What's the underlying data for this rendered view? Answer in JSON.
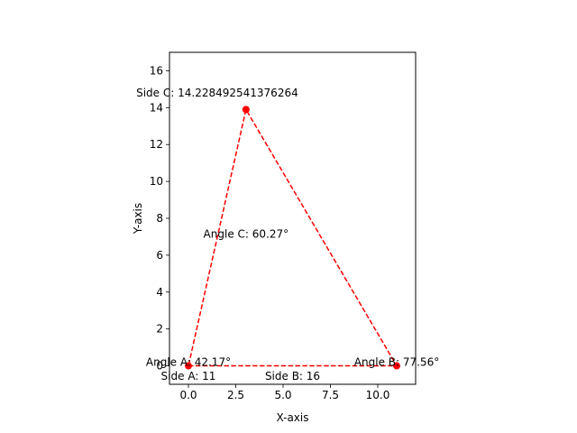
{
  "chart_data": {
    "type": "line",
    "title": "",
    "xlabel": "X-axis",
    "ylabel": "Y-axis",
    "xlim": [
      -1,
      12
    ],
    "ylim": [
      -1,
      17
    ],
    "xticks": [
      0,
      2.5,
      5,
      7.5,
      10
    ],
    "xtick_labels": [
      "0.0",
      "2.5",
      "5.0",
      "7.5",
      "10.0"
    ],
    "yticks": [
      0,
      2,
      4,
      6,
      8,
      10,
      12,
      14,
      16
    ],
    "ytick_labels": [
      "0",
      "2",
      "4",
      "6",
      "8",
      "10",
      "12",
      "14",
      "16"
    ],
    "grid": false,
    "series": [
      {
        "color": "#ff0000",
        "linestyle": "dashed",
        "marker": "circle",
        "points": [
          {
            "x": 0,
            "y": 0
          },
          {
            "x": 11,
            "y": 0
          },
          {
            "x": 3.04,
            "y": 13.9
          },
          {
            "x": 0,
            "y": 0
          }
        ]
      }
    ],
    "annotations": [
      {
        "text": "Angle A: 42.17°",
        "x": 0,
        "y": 0
      },
      {
        "text": "Angle B: 77.56°",
        "x": 11,
        "y": 0
      },
      {
        "text": "Angle C: 60.27°",
        "x": 3.04,
        "y": 6.95
      },
      {
        "text": "Side A: 11",
        "x": 0,
        "y": -0.75
      },
      {
        "text": "Side B: 16",
        "x": 5.5,
        "y": -0.75
      },
      {
        "text": "Side C: 14.228492541376264",
        "x": 1.52,
        "y": 14.6
      }
    ]
  }
}
